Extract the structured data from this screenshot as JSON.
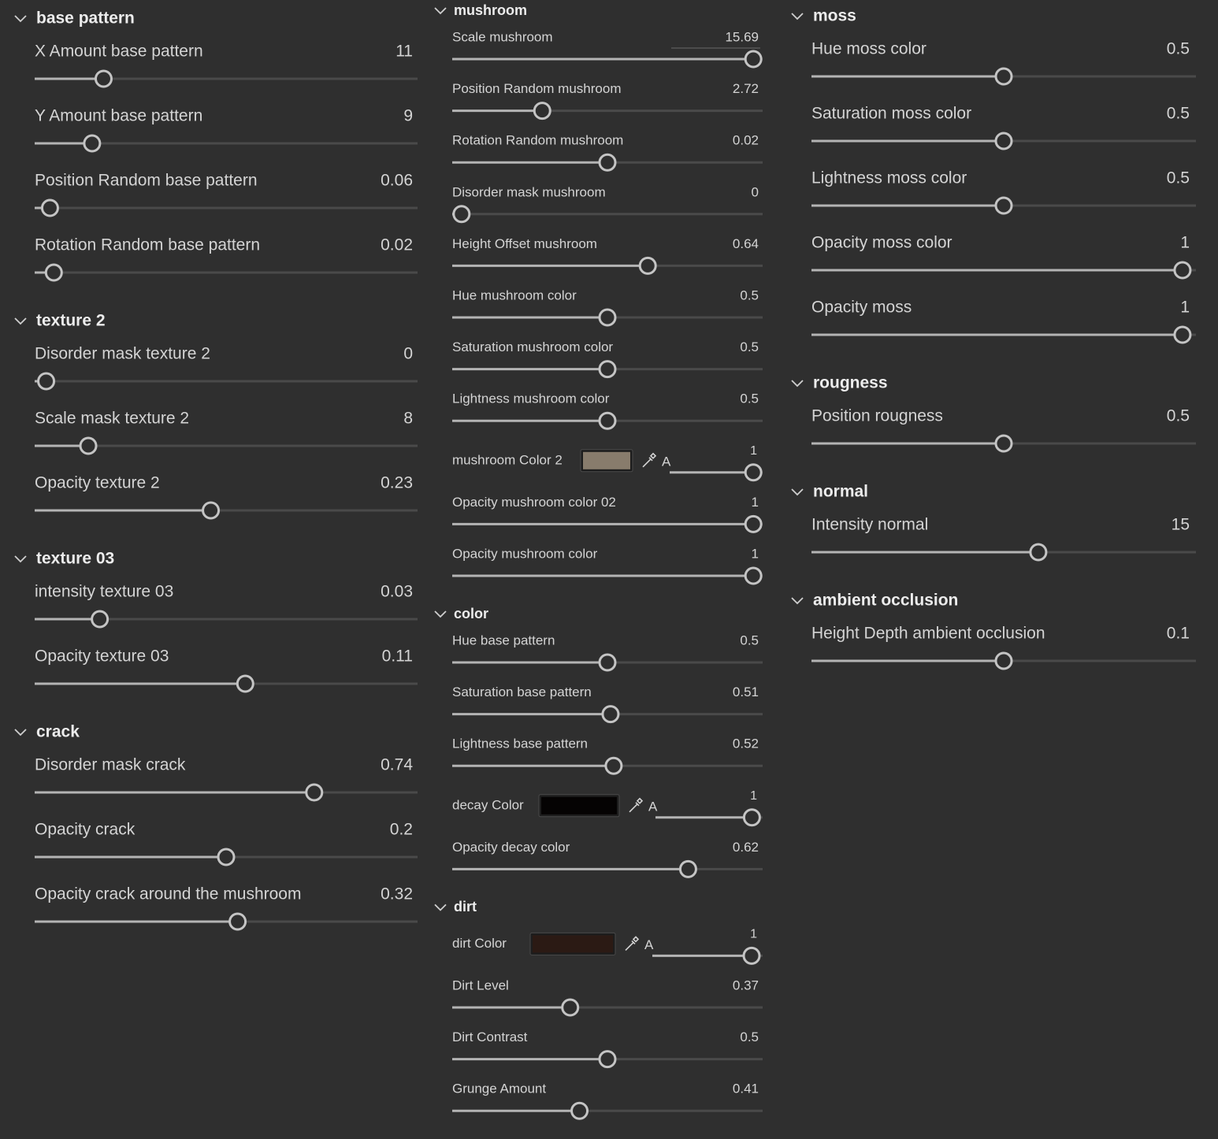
{
  "columns": [
    {
      "groups": [
        {
          "title": "base pattern",
          "params": [
            {
              "label": "X Amount base pattern",
              "value": 11
            },
            {
              "label": "Y Amount base pattern",
              "value": 9
            },
            {
              "label": "Position Random base pattern",
              "value": 0.06
            },
            {
              "label": "Rotation Random base pattern",
              "value": 0.02
            }
          ]
        },
        {
          "title": "texture 2",
          "params": [
            {
              "label": "Disorder mask texture 2",
              "value": 0
            },
            {
              "label": "Scale mask texture 2",
              "value": 8
            },
            {
              "label": "Opacity texture 2",
              "value": 0.23
            }
          ]
        },
        {
          "title": "texture 03",
          "params": [
            {
              "label": "intensity texture 03",
              "value": 0.03
            },
            {
              "label": "Opacity texture 03",
              "value": 0.11
            }
          ]
        },
        {
          "title": "crack",
          "params": [
            {
              "label": "Disorder mask crack",
              "value": 0.74
            },
            {
              "label": "Opacity crack",
              "value": 0.2
            },
            {
              "label": "Opacity crack around the mushroom",
              "value": 0.32
            }
          ]
        }
      ]
    },
    {
      "groups": [
        {
          "title": "mushroom",
          "params": [
            {
              "label": "Scale mushroom",
              "value": 15.69
            },
            {
              "label": "Position Random mushroom",
              "value": 2.72
            },
            {
              "label": "Rotation Random mushroom",
              "value": 0.02
            },
            {
              "label": "Disorder mask mushroom",
              "value": 0
            },
            {
              "label": "Height Offset mushroom",
              "value": 0.64
            },
            {
              "label": "Hue mushroom color",
              "value": 0.5
            },
            {
              "label": "Saturation mushroom color",
              "value": 0.5
            },
            {
              "label": "Lightness mushroom color",
              "value": 0.5
            },
            {
              "label": "mushroom Color 2",
              "swatch": "#887c6c",
              "alpha_label": "A",
              "value": 1
            },
            {
              "label": "Opacity mushroom color 02",
              "value": 1
            },
            {
              "label": "Opacity mushroom color",
              "value": 1
            }
          ]
        },
        {
          "title": "color",
          "params": [
            {
              "label": "Hue base pattern",
              "value": 0.5
            },
            {
              "label": "Saturation base pattern",
              "value": 0.51
            },
            {
              "label": "Lightness base pattern",
              "value": 0.52
            },
            {
              "label": "decay Color",
              "swatch": "#050303",
              "alpha_label": "A",
              "value": 1
            },
            {
              "label": "Opacity decay color",
              "value": 0.62
            }
          ]
        },
        {
          "title": "dirt",
          "params": [
            {
              "label": "dirt Color",
              "swatch": "#2b1a14",
              "alpha_label": "A",
              "value": 1
            },
            {
              "label": "Dirt Level",
              "value": 0.37
            },
            {
              "label": "Dirt Contrast",
              "value": 0.5
            },
            {
              "label": "Grunge Amount",
              "value": 0.41
            }
          ]
        }
      ]
    },
    {
      "groups": [
        {
          "title": "moss",
          "params": [
            {
              "label": "Hue moss color",
              "value": 0.5
            },
            {
              "label": "Saturation moss color",
              "value": 0.5
            },
            {
              "label": "Lightness moss color",
              "value": 0.5
            },
            {
              "label": "Opacity moss color",
              "value": 1
            },
            {
              "label": "Opacity moss",
              "value": 1
            }
          ]
        },
        {
          "title": "rougness",
          "params": [
            {
              "label": "Position rougness",
              "value": 0.5
            }
          ]
        },
        {
          "title": "normal",
          "params": [
            {
              "label": "Intensity normal",
              "value": 15
            }
          ]
        },
        {
          "title": "ambient occlusion",
          "params": [
            {
              "label": "Height Depth ambient occlusion",
              "value": 0.1
            }
          ]
        }
      ]
    }
  ]
}
